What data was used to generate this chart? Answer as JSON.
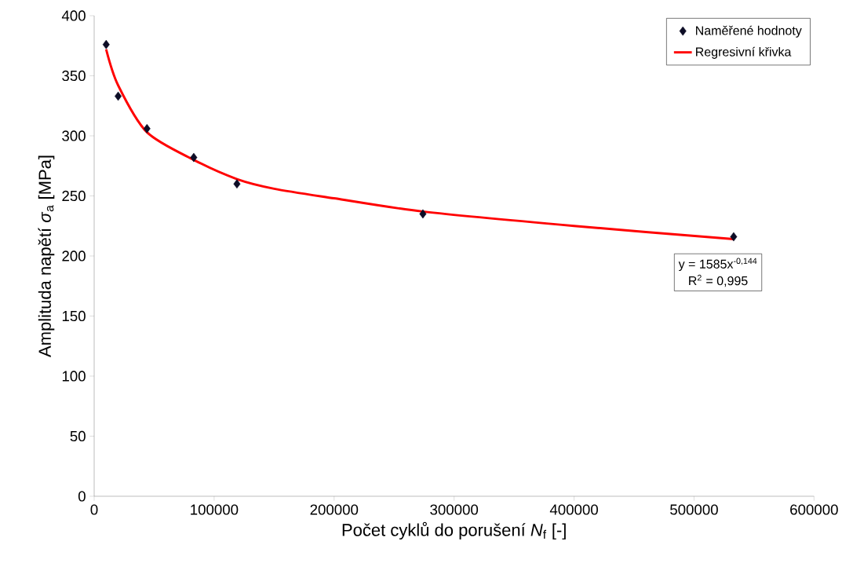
{
  "chart_data": {
    "type": "scatter",
    "xlabel": "Počet cyklů do porušení *N*$_{f}$ [-]",
    "ylabel": "Amplituda napětí *σ*$_{a}$ [MPa]",
    "xlim": [
      0,
      600000
    ],
    "ylim": [
      0,
      400
    ],
    "xticks": [
      0,
      100000,
      200000,
      300000,
      400000,
      500000,
      600000
    ],
    "yticks": [
      0,
      50,
      100,
      150,
      200,
      250,
      300,
      350,
      400
    ],
    "grid": false,
    "legend": "top right",
    "annotations": [
      "y = 1585x$^{-0,144}$",
      "R$^{2}$ = 0,995"
    ],
    "series": [
      {
        "name": "Naměřené hodnoty",
        "type": "scatter",
        "marker": "diamond",
        "color": "#0d0d26",
        "x": [
          10000,
          20000,
          44000,
          83000,
          119000,
          274000,
          533000
        ],
        "values": [
          376,
          333,
          306,
          282,
          260,
          235,
          216
        ]
      },
      {
        "name": "Regresivní křivka",
        "type": "line",
        "marker": "none",
        "line_style": "solid",
        "color": "#ff0000",
        "x": [
          10000,
          20000,
          44000,
          83000,
          119000,
          150000,
          200000,
          274000,
          400000,
          533000
        ],
        "values": [
          372,
          342,
          303,
          280,
          264,
          256,
          248,
          237,
          225,
          214
        ]
      }
    ]
  }
}
